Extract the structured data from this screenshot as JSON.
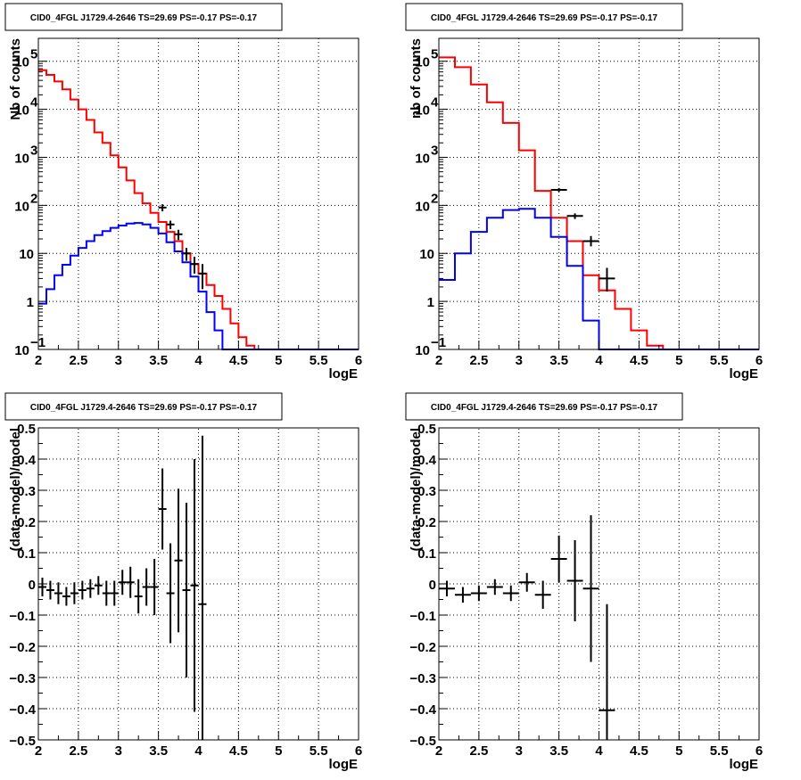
{
  "chart_data": [
    {
      "type": "line",
      "title": "CID0_4FGL J1729.4-2646 TS=29.69 PS=-0.17 PS=-0.17",
      "xlabel": "logE",
      "ylabel": "Nb of counts",
      "xlim": [
        2,
        6
      ],
      "ylim": [
        0.1,
        300000
      ],
      "log_y": true,
      "grid": true,
      "x_ticks": [
        "2",
        "2.5",
        "3",
        "3.5",
        "4",
        "4.5",
        "5",
        "5.5",
        "6"
      ],
      "y_ticks": [
        {
          "value": 0.1,
          "label": "10",
          "exp": "−1"
        },
        {
          "value": 1,
          "label": "1",
          "exp": ""
        },
        {
          "value": 10,
          "label": "10",
          "exp": ""
        },
        {
          "value": 100,
          "label": "10",
          "exp": "2"
        },
        {
          "value": 1000,
          "label": "10",
          "exp": "3"
        },
        {
          "value": 10000,
          "label": "10",
          "exp": "4"
        },
        {
          "value": 100000,
          "label": "10",
          "exp": "5"
        }
      ],
      "bin_edges": [
        2.0,
        2.1,
        2.2,
        2.3,
        2.4,
        2.5,
        2.6,
        2.7,
        2.8,
        2.9,
        3.0,
        3.1,
        3.2,
        3.3,
        3.4,
        3.5,
        3.6,
        3.7,
        3.8,
        3.9,
        4.0,
        4.1,
        4.2,
        4.3,
        4.4,
        4.5,
        4.6,
        4.7,
        4.8,
        4.9,
        5.0,
        5.1,
        5.2,
        5.3,
        5.4,
        5.5,
        5.6,
        5.7,
        5.8,
        5.9,
        6.0
      ],
      "series": [
        {
          "color": "#ff0000",
          "values": [
            65000,
            52000,
            38000,
            26000,
            16000,
            10000,
            6000,
            3300,
            2000,
            1100,
            620,
            330,
            180,
            110,
            70,
            45,
            28,
            18,
            10,
            6,
            3.8,
            2.2,
            1.3,
            0.7,
            0.35,
            0.18,
            0.12,
            0.1,
            0.1,
            0.1,
            0.1,
            0.1,
            0.1,
            0.1,
            0.1,
            0.1,
            0.1,
            0.1,
            0.1,
            0.1
          ]
        },
        {
          "color": "#0000ff",
          "values": [
            0.9,
            1.8,
            3.5,
            5.8,
            9,
            13,
            18,
            24,
            29,
            34,
            38,
            42,
            43,
            40,
            34,
            26,
            17,
            11,
            6.5,
            3.3,
            1.6,
            0.6,
            0.25,
            0.1,
            0.1,
            0.1,
            0.1,
            0.1,
            0.1,
            0.1,
            0.1,
            0.1,
            0.1,
            0.1,
            0.1,
            0.1,
            0.1,
            0.1,
            0.1,
            0.1
          ]
        }
      ],
      "data_points": [
        {
          "x": 3.55,
          "y": 90,
          "ylo": 75,
          "yhi": 105
        },
        {
          "x": 3.65,
          "y": 40,
          "ylo": 32,
          "yhi": 48
        },
        {
          "x": 3.75,
          "y": 25,
          "ylo": 19,
          "yhi": 31
        },
        {
          "x": 3.85,
          "y": 10,
          "ylo": 7,
          "yhi": 13
        },
        {
          "x": 3.95,
          "y": 6,
          "ylo": 3.8,
          "yhi": 8.5
        },
        {
          "x": 4.05,
          "y": 3.8,
          "ylo": 1.8,
          "yhi": 6
        }
      ]
    },
    {
      "type": "line",
      "title": "CID0_4FGL J1729.4-2646 TS=29.69 PS=-0.17 PS=-0.17",
      "xlabel": "logE",
      "ylabel": "nb of counts",
      "xlim": [
        2,
        6
      ],
      "ylim": [
        0.1,
        300000
      ],
      "log_y": true,
      "grid": true,
      "x_ticks": [
        "2",
        "2.5",
        "3",
        "3.5",
        "4",
        "4.5",
        "5",
        "5.5",
        "6"
      ],
      "y_ticks": [
        {
          "value": 0.1,
          "label": "10",
          "exp": "−1"
        },
        {
          "value": 1,
          "label": "1",
          "exp": ""
        },
        {
          "value": 10,
          "label": "10",
          "exp": ""
        },
        {
          "value": 100,
          "label": "10",
          "exp": "2"
        },
        {
          "value": 1000,
          "label": "10",
          "exp": "3"
        },
        {
          "value": 10000,
          "label": "10",
          "exp": "4"
        },
        {
          "value": 100000,
          "label": "10",
          "exp": "5"
        }
      ],
      "bin_edges": [
        2.0,
        2.2,
        2.4,
        2.6,
        2.8,
        3.0,
        3.2,
        3.4,
        3.6,
        3.8,
        4.0,
        4.2,
        4.4,
        4.6,
        4.8,
        5.0,
        5.2,
        5.4,
        5.6,
        5.8,
        6.0
      ],
      "series": [
        {
          "color": "#ff0000",
          "values": [
            120000,
            75000,
            33000,
            14000,
            5200,
            1400,
            200,
            55,
            18,
            3.5,
            1.7,
            0.7,
            0.25,
            0.12,
            0.1,
            0.1,
            0.1,
            0.1,
            0.1,
            0.1
          ]
        },
        {
          "color": "#0000ff",
          "values": [
            2.8,
            10,
            28,
            55,
            80,
            85,
            55,
            22,
            5.5,
            0.4,
            0.1,
            0.1,
            0.1,
            0.1,
            0.1,
            0.1,
            0.1,
            0.1,
            0.1,
            0.1
          ]
        }
      ],
      "data_points": [
        {
          "x": 3.5,
          "y": 210,
          "ylo": 190,
          "yhi": 230
        },
        {
          "x": 3.7,
          "y": 60,
          "ylo": 52,
          "yhi": 68
        },
        {
          "x": 3.9,
          "y": 18,
          "ylo": 14,
          "yhi": 23
        },
        {
          "x": 4.1,
          "y": 3,
          "ylo": 1.6,
          "yhi": 5
        }
      ]
    },
    {
      "type": "scatter",
      "title": "CID0_4FGL J1729.4-2646 TS=29.69 PS=-0.17 PS=-0.17",
      "xlabel": "logE",
      "ylabel": "(data-model)/model",
      "xlim": [
        2,
        6
      ],
      "ylim": [
        -0.5,
        0.5
      ],
      "grid": true,
      "x_ticks": [
        "2",
        "2.5",
        "3",
        "3.5",
        "4",
        "4.5",
        "5",
        "5.5",
        "6"
      ],
      "y_ticks": [
        "−0.5",
        "−0.4",
        "−0.3",
        "−0.2",
        "−0.1",
        "0",
        "0.1",
        "0.2",
        "0.3",
        "0.4",
        "0.5"
      ],
      "xerr": 0.05,
      "points": [
        {
          "x": 2.05,
          "y": -0.01,
          "err": 0.03
        },
        {
          "x": 2.15,
          "y": -0.02,
          "err": 0.03
        },
        {
          "x": 2.25,
          "y": -0.03,
          "err": 0.035
        },
        {
          "x": 2.35,
          "y": -0.04,
          "err": 0.03
        },
        {
          "x": 2.45,
          "y": -0.03,
          "err": 0.035
        },
        {
          "x": 2.55,
          "y": -0.02,
          "err": 0.03
        },
        {
          "x": 2.65,
          "y": -0.015,
          "err": 0.03
        },
        {
          "x": 2.75,
          "y": -0.005,
          "err": 0.03
        },
        {
          "x": 2.85,
          "y": -0.03,
          "err": 0.04
        },
        {
          "x": 2.95,
          "y": -0.03,
          "err": 0.04
        },
        {
          "x": 3.05,
          "y": 0.005,
          "err": 0.04
        },
        {
          "x": 3.15,
          "y": 0.005,
          "err": 0.05
        },
        {
          "x": 3.25,
          "y": -0.04,
          "err": 0.055
        },
        {
          "x": 3.35,
          "y": -0.01,
          "err": 0.06
        },
        {
          "x": 3.45,
          "y": -0.01,
          "err": 0.09
        },
        {
          "x": 3.55,
          "y": 0.24,
          "err": 0.13
        },
        {
          "x": 3.65,
          "y": -0.03,
          "err": 0.16
        },
        {
          "x": 3.75,
          "y": 0.075,
          "err": 0.23
        },
        {
          "x": 3.85,
          "y": -0.02,
          "err": 0.28
        },
        {
          "x": 3.95,
          "y": -0.005,
          "err": 0.405
        },
        {
          "x": 4.05,
          "y": -0.065,
          "err": 0.54
        }
      ]
    },
    {
      "type": "scatter",
      "title": "CID0_4FGL J1729.4-2646 TS=29.69 PS=-0.17 PS=-0.17",
      "xlabel": "logE",
      "ylabel": "(data-model)/model",
      "xlim": [
        2,
        6
      ],
      "ylim": [
        -0.5,
        0.5
      ],
      "grid": true,
      "x_ticks": [
        "2",
        "2.5",
        "3",
        "3.5",
        "4",
        "4.5",
        "5",
        "5.5",
        "6"
      ],
      "y_ticks": [
        "−0.5",
        "−0.4",
        "−0.3",
        "−0.2",
        "−0.1",
        "0",
        "0.1",
        "0.2",
        "0.3",
        "0.4",
        "0.5"
      ],
      "xerr": 0.1,
      "points": [
        {
          "x": 2.1,
          "y": -0.015,
          "err": 0.025
        },
        {
          "x": 2.3,
          "y": -0.035,
          "err": 0.025
        },
        {
          "x": 2.5,
          "y": -0.03,
          "err": 0.025
        },
        {
          "x": 2.7,
          "y": -0.01,
          "err": 0.025
        },
        {
          "x": 2.9,
          "y": -0.03,
          "err": 0.025
        },
        {
          "x": 3.1,
          "y": 0.005,
          "err": 0.03
        },
        {
          "x": 3.3,
          "y": -0.035,
          "err": 0.045
        },
        {
          "x": 3.5,
          "y": 0.08,
          "err": 0.075
        },
        {
          "x": 3.7,
          "y": 0.01,
          "err": 0.13
        },
        {
          "x": 3.9,
          "y": -0.015,
          "err": 0.235
        },
        {
          "x": 4.1,
          "y": -0.405,
          "err": 0.34
        }
      ]
    }
  ]
}
